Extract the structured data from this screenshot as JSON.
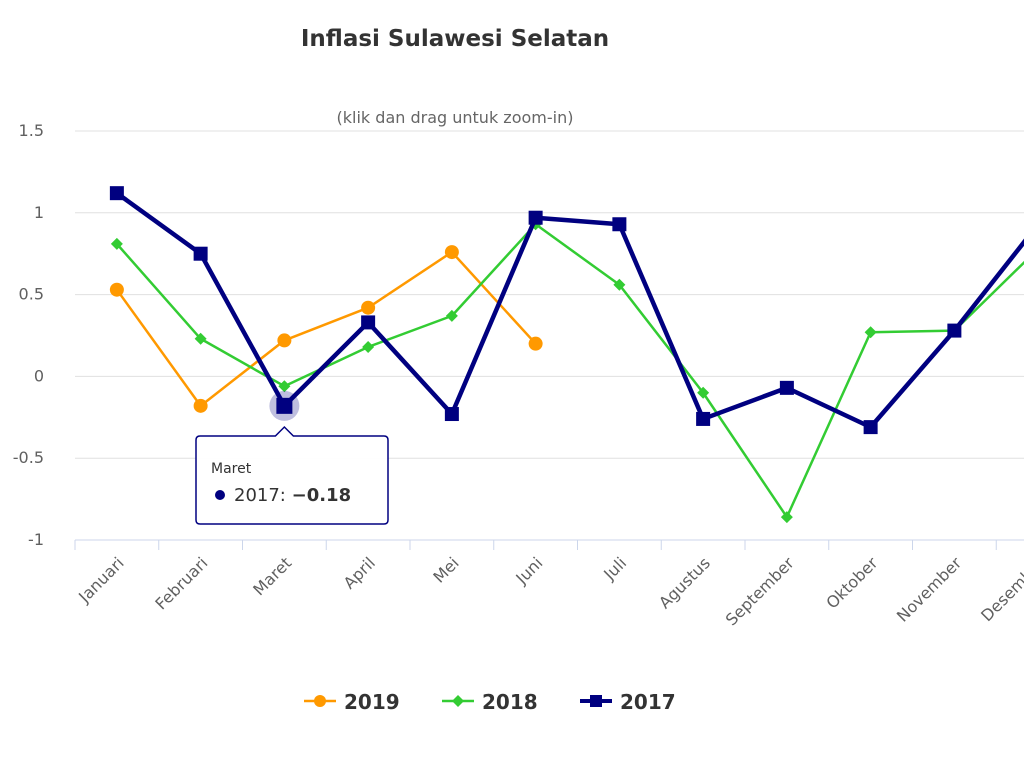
{
  "chart_data": {
    "type": "line",
    "title": "Inflasi Sulawesi Selatan",
    "subtitle": "(klik dan drag untuk zoom-in)",
    "categories": [
      "Januari",
      "Februari",
      "Maret",
      "April",
      "Mei",
      "Juni",
      "Juli",
      "Agustus",
      "September",
      "Oktober",
      "November",
      "Desember"
    ],
    "ylim": [
      -1,
      1.5
    ],
    "yticks": [
      "1.5",
      "1",
      "0.5",
      "0",
      "-0.5",
      "-1"
    ],
    "ytick_values": [
      1.5,
      1,
      0.5,
      0,
      -0.5,
      -1
    ],
    "series": [
      {
        "name": "2019",
        "color": "#ff9900",
        "marker": "circle",
        "values": [
          0.53,
          -0.18,
          0.22,
          0.42,
          0.76,
          0.2,
          null,
          null,
          null,
          null,
          null,
          null
        ]
      },
      {
        "name": "2018",
        "color": "#33cc33",
        "marker": "diamond",
        "values": [
          0.81,
          0.23,
          -0.06,
          0.18,
          0.37,
          0.93,
          0.56,
          -0.1,
          -0.86,
          0.27,
          0.28,
          0.78
        ]
      },
      {
        "name": "2017",
        "color": "#000080",
        "marker": "square",
        "values": [
          1.12,
          0.75,
          -0.18,
          0.33,
          -0.23,
          0.97,
          0.93,
          -0.26,
          -0.07,
          -0.31,
          0.28,
          0.93
        ]
      }
    ],
    "legend": {
      "position": "bottom-center",
      "items": [
        "2019",
        "2018",
        "2017"
      ]
    },
    "tooltip": {
      "category": "Maret",
      "series": "2017",
      "label": "2017: ",
      "value": "-0.18",
      "point_index": 2
    }
  }
}
